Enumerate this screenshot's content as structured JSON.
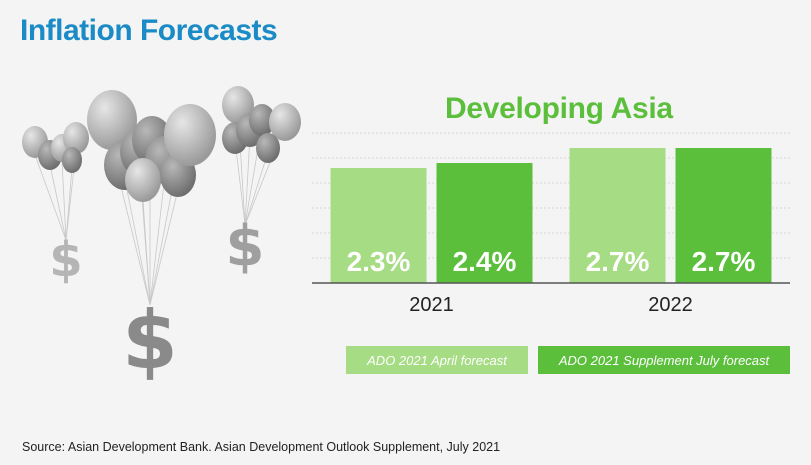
{
  "header": {
    "title": "Inflation Forecasts"
  },
  "colors": {
    "title": "#1a8bc6",
    "accent": "#5bbf3c",
    "light_green": "#a6dc84",
    "dark_green": "#5bbf3c"
  },
  "chart_data": {
    "type": "bar",
    "title": "Developing Asia",
    "categories": [
      "2021",
      "2022"
    ],
    "series": [
      {
        "name": "ADO 2021 April forecast",
        "values": [
          2.3,
          2.7
        ],
        "labels": [
          "2.3%",
          "2.7%"
        ],
        "color": "#a6dc84"
      },
      {
        "name": "ADO 2021 Supplement July forecast",
        "values": [
          2.4,
          2.7
        ],
        "labels": [
          "2.4%",
          "2.7%"
        ],
        "color": "#5bbf3c"
      }
    ],
    "xlabel": "",
    "ylabel": "",
    "ylim": [
      0,
      3.0
    ],
    "grid": true,
    "legend": "bottom"
  },
  "illustration": {
    "icon": "money-balloons-icon",
    "symbol": "$"
  },
  "footer": {
    "source": "Source: Asian Development Bank. Asian Development Outlook Supplement, July 2021"
  }
}
